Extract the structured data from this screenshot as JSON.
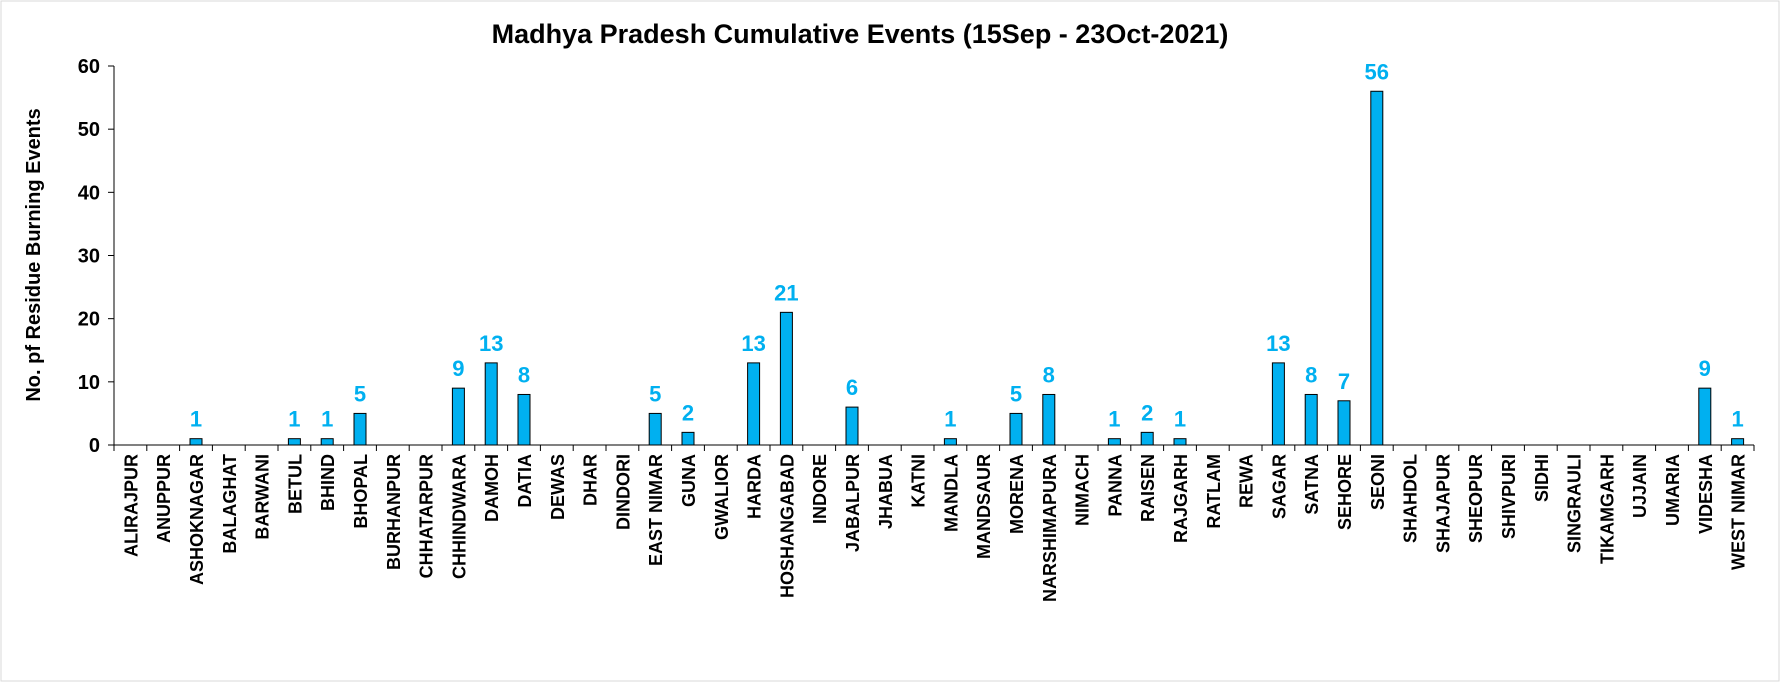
{
  "chart_data": {
    "type": "bar",
    "title": "Madhya Pradesh Cumulative Events (15Sep - 23Oct-2021)",
    "y_label": "No. pf Residue Burning Events",
    "categories": [
      "ALIRAJPUR",
      "ANUPPUR",
      "ASHOKNAGAR",
      "BALAGHAT",
      "BARWANI",
      "BETUL",
      "BHIND",
      "BHOPAL",
      "BURHANPUR",
      "CHHATARPUR",
      "CHHINDWARA",
      "DAMOH",
      "DATIA",
      "DEWAS",
      "DHAR",
      "DINDORI",
      "EAST NIMAR",
      "GUNA",
      "GWALIOR",
      "HARDA",
      "HOSHANGABAD",
      "INDORE",
      "JABALPUR",
      "JHABUA",
      "KATNI",
      "MANDLA",
      "MANDSAUR",
      "MORENA",
      "NARSHIMAPURA",
      "NIMACH",
      "PANNA",
      "RAISEN",
      "RAJGARH",
      "RATLAM",
      "REWA",
      "SAGAR",
      "SATNA",
      "SEHORE",
      "SEONI",
      "SHAHDOL",
      "SHAJAPUR",
      "SHEOPUR",
      "SHIVPURI",
      "SIDHI",
      "SINGRAULI",
      "TIKAMGARH",
      "UJJAIN",
      "UMARIA",
      "VIDESHA",
      "WEST NIMAR"
    ],
    "values": [
      0,
      0,
      1,
      0,
      0,
      1,
      1,
      5,
      0,
      0,
      9,
      13,
      8,
      0,
      0,
      0,
      5,
      2,
      0,
      13,
      21,
      0,
      6,
      0,
      0,
      1,
      0,
      5,
      8,
      0,
      1,
      2,
      1,
      0,
      0,
      13,
      8,
      7,
      56,
      0,
      0,
      0,
      0,
      0,
      0,
      0,
      0,
      0,
      9,
      1
    ],
    "color": "#00b0f0",
    "label_color": "#00b0f0",
    "ylim": [
      0,
      60
    ],
    "yticks": [
      0,
      10,
      20,
      30,
      40,
      50,
      60
    ],
    "grid": false
  }
}
